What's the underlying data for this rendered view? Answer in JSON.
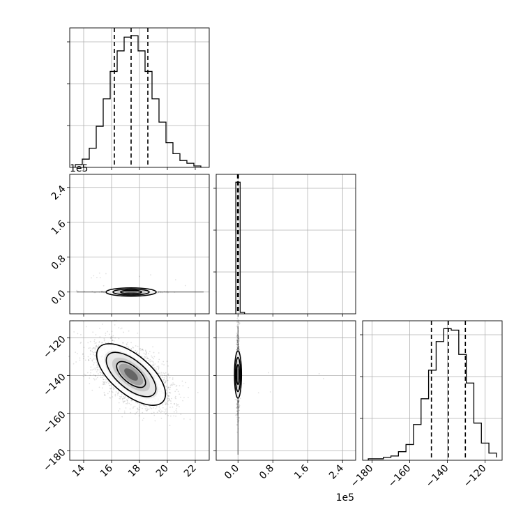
{
  "chart_data": [
    {
      "type": "histogram",
      "panel": "marginal-param-1",
      "x_ticks": [
        "14",
        "16",
        "18",
        "20",
        "22"
      ],
      "xlim": [
        13,
        23
      ],
      "bins": [
        13.4,
        13.9,
        14.4,
        14.9,
        15.4,
        15.9,
        16.4,
        16.9,
        17.4,
        17.9,
        18.4,
        18.9,
        19.4,
        19.9,
        20.4,
        20.9,
        21.4,
        21.9,
        22.4
      ],
      "counts": [
        2,
        6,
        14,
        30,
        50,
        70,
        85,
        95,
        96,
        85,
        70,
        50,
        33,
        18,
        10,
        5,
        3,
        1
      ],
      "quantiles": [
        16.2,
        17.4,
        18.6
      ],
      "grid": true
    },
    {
      "type": "histogram",
      "panel": "marginal-param-2",
      "x_ticks": [
        "0.0",
        "0.8",
        "1.6",
        "2.4"
      ],
      "x_scale_label": "1e5",
      "xlim": [
        -0.5,
        2.7
      ],
      "bins": [
        -0.05,
        0.05,
        0.15
      ],
      "counts": [
        96,
        1
      ],
      "quantiles": [
        -0.01,
        0.0,
        0.01
      ],
      "grid": true
    },
    {
      "type": "histogram",
      "panel": "marginal-param-3",
      "x_ticks": [
        "−180",
        "−160",
        "−140",
        "−120"
      ],
      "xlim": [
        -185,
        -111
      ],
      "bins": [
        -182,
        -178,
        -174,
        -170,
        -166,
        -162,
        -158,
        -154,
        -150,
        -146,
        -142,
        -138,
        -134,
        -130,
        -126,
        -122,
        -118,
        -114
      ],
      "counts": [
        1,
        1,
        2,
        3,
        6,
        11,
        25,
        43,
        63,
        83,
        92,
        91,
        74,
        54,
        26,
        12,
        5,
        2
      ],
      "quantiles": [
        -148.5,
        -139.5,
        -130.5
      ],
      "grid": true
    },
    {
      "type": "scatter-contour",
      "panel": "param-1-vs-param-2",
      "y_ticks": [
        "0.0",
        "0.8",
        "1.6",
        "2.4"
      ],
      "y_scale_label": "1e5",
      "xlim": [
        13,
        23
      ],
      "ylim": [
        -0.5,
        2.7
      ],
      "center": [
        17.4,
        0.0
      ],
      "grid": true
    },
    {
      "type": "scatter-contour",
      "panel": "param-1-vs-param-3",
      "x_ticks": [
        "14",
        "16",
        "18",
        "20",
        "22"
      ],
      "y_ticks": [
        "−120",
        "−140",
        "−160",
        "−180"
      ],
      "xlim": [
        13,
        23
      ],
      "ylim": [
        -185,
        -111
      ],
      "center": [
        17.4,
        -139.5
      ],
      "grid": true
    },
    {
      "type": "scatter-contour",
      "panel": "param-2-vs-param-3",
      "x_ticks": [
        "0.0",
        "0.8",
        "1.6",
        "2.4"
      ],
      "x_scale_label": "1e5",
      "xlim": [
        -0.5,
        2.7
      ],
      "ylim": [
        -185,
        -111
      ],
      "center": [
        0.0,
        -139.5
      ],
      "grid": true
    }
  ]
}
